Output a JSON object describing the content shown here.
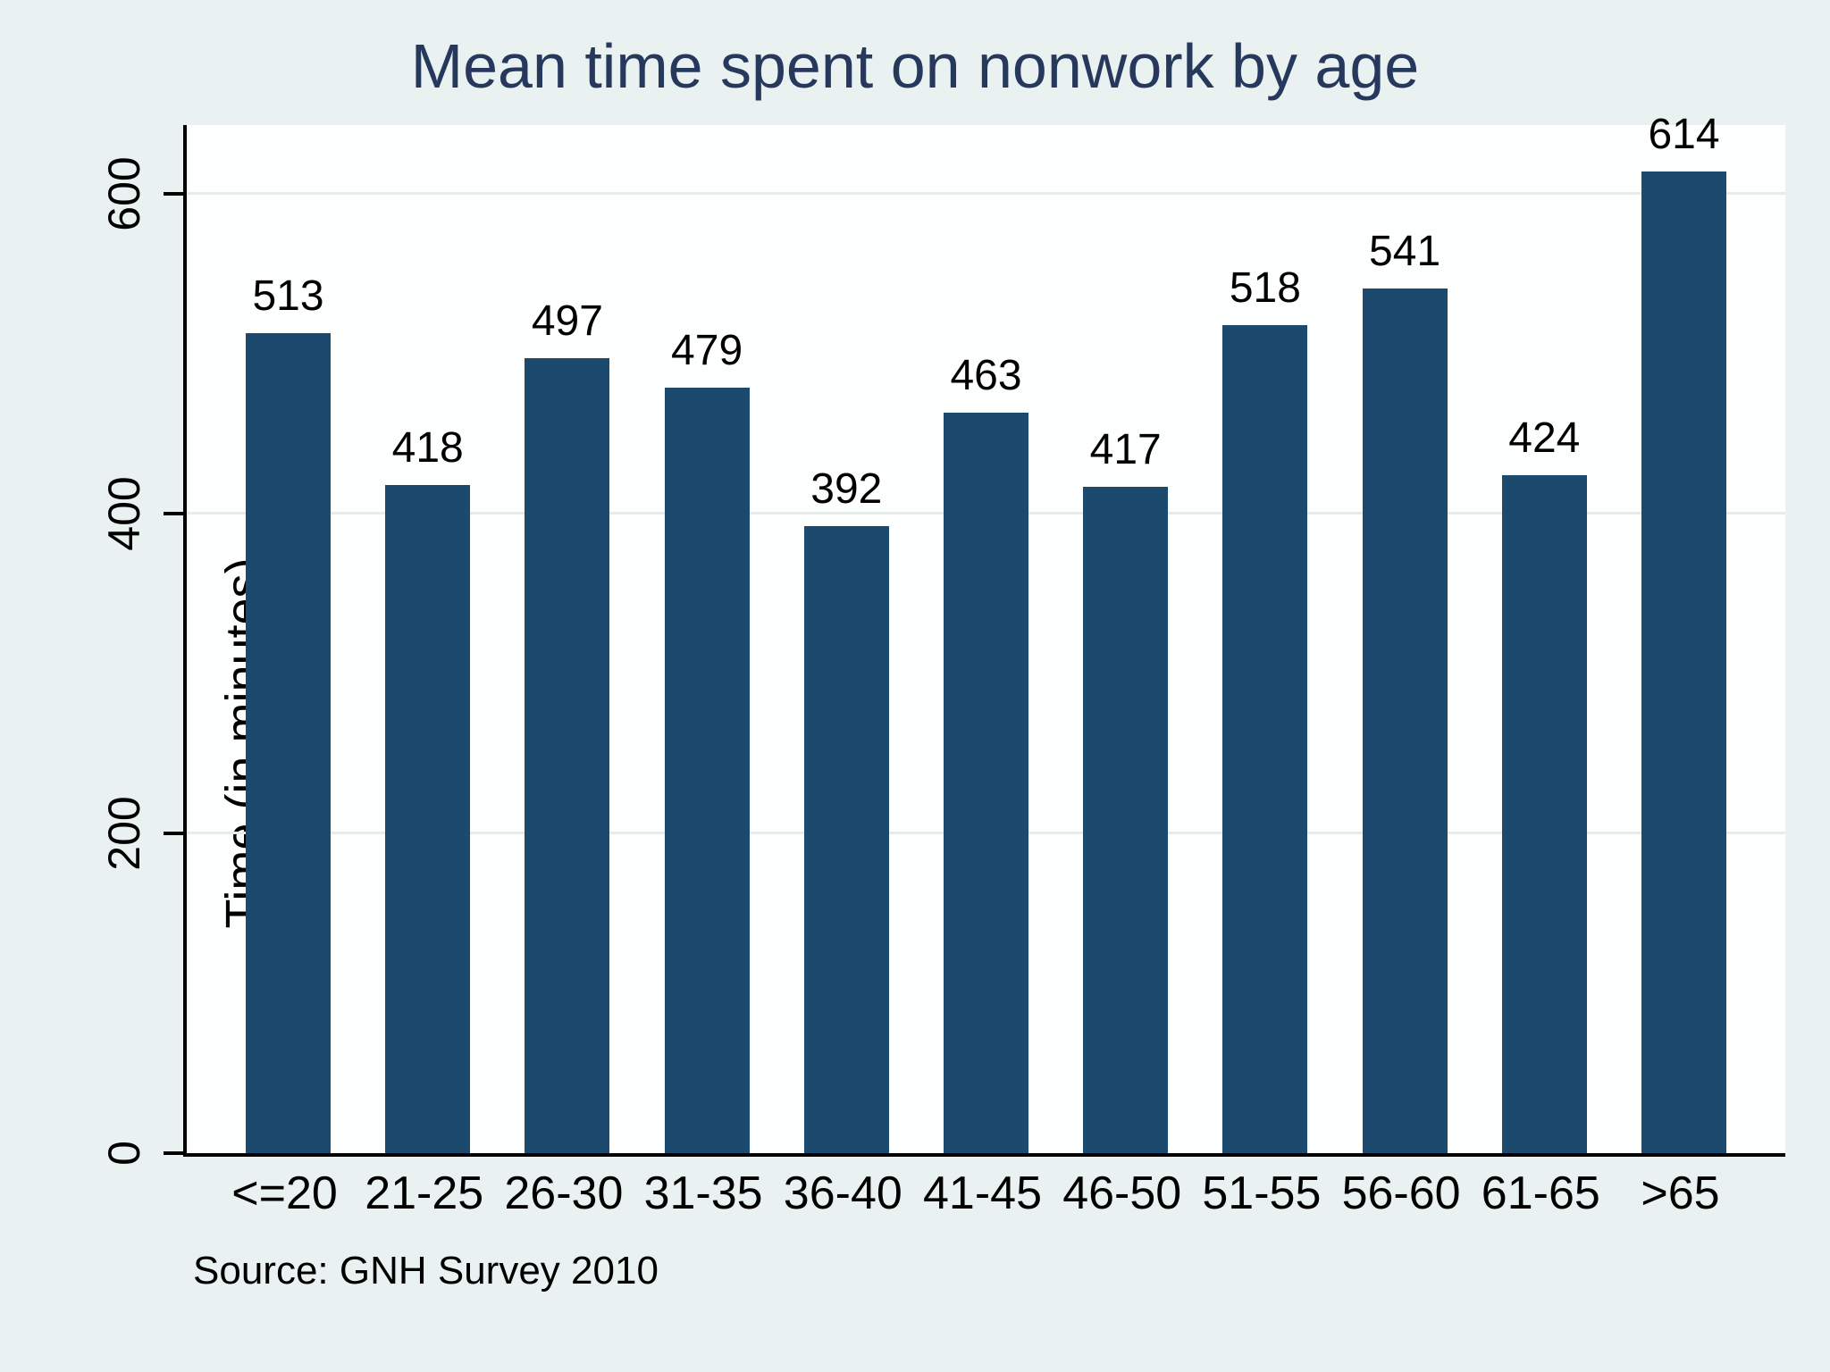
{
  "chart_data": {
    "type": "bar",
    "title": "Mean time spent on nonwork by age",
    "xlabel": "",
    "ylabel": "Time (in minutes)",
    "categories": [
      "<=20",
      "21-25",
      "26-30",
      "31-35",
      "36-40",
      "41-45",
      "46-50",
      "51-55",
      "56-60",
      "61-65",
      ">65"
    ],
    "values": [
      513,
      418,
      497,
      479,
      392,
      463,
      417,
      518,
      541,
      424,
      614
    ],
    "value_labels_shown": true,
    "yticks": [
      0,
      200,
      400,
      600
    ],
    "ylim": [
      0,
      643
    ],
    "grid": "horizontal-light",
    "legend_position": "none",
    "source_note": "Source: GNH Survey 2010",
    "colors": {
      "bar": "#1b4a6e",
      "title_text": "#26395c",
      "outer_background": "#e9f1f1",
      "plot_background": "#fdfefe",
      "gridline": "#e3edee",
      "axis_line": "#000000",
      "tick_text": "#000000"
    }
  }
}
